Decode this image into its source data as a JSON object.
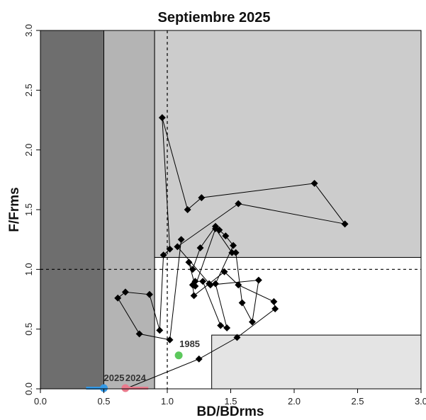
{
  "chart_data": {
    "type": "scatter",
    "title": "Septiembre 2025",
    "xlabel": "BD/BDrms",
    "ylabel": "F/Frms",
    "xlim": [
      0,
      3
    ],
    "ylim": [
      0,
      3
    ],
    "xticks": [
      "0.0",
      "0.5",
      "1.0",
      "1.5",
      "2.0",
      "2.5",
      "3.0"
    ],
    "yticks": [
      "0.0",
      "0.5",
      "1.0",
      "1.5",
      "2.0",
      "2.5",
      "3.0"
    ],
    "grid": false,
    "reference_lines": {
      "x": 1.0,
      "y": 1.0
    },
    "zones": [
      {
        "x0": 0,
        "x1": 0.5,
        "y0": 0,
        "y1": 3,
        "color": "#6e6e6e"
      },
      {
        "x0": 0.5,
        "x1": 0.9,
        "y0": 0,
        "y1": 3,
        "color": "#b4b4b4"
      },
      {
        "x0": 0.9,
        "x1": 3,
        "y0": 1.1,
        "y1": 3,
        "color": "#cccccc"
      },
      {
        "x0": 0.9,
        "x1": 3,
        "y0": 0,
        "y1": 1.1,
        "color": "#ffffff"
      },
      {
        "x0": 1.35,
        "x1": 3,
        "y0": 0,
        "y1": 0.45,
        "color": "#e4e4e4"
      }
    ],
    "series": [
      {
        "points": [
          [
            0.67,
            0.0
          ],
          [
            1.25,
            0.25
          ],
          [
            1.55,
            0.43
          ],
          [
            1.85,
            0.67
          ],
          [
            1.84,
            0.73
          ],
          [
            1.56,
            0.87
          ],
          [
            1.45,
            0.98
          ],
          [
            1.33,
            0.88
          ],
          [
            1.21,
            0.78
          ],
          [
            1.2,
            0.87
          ],
          [
            1.22,
            0.9
          ],
          [
            1.28,
            0.9
          ],
          [
            1.42,
            0.53
          ],
          [
            1.47,
            0.51
          ],
          [
            1.38,
            0.88
          ],
          [
            1.52,
            1.2
          ],
          [
            1.46,
            1.28
          ],
          [
            1.41,
            1.33
          ],
          [
            1.38,
            1.36
          ],
          [
            1.26,
            1.18
          ],
          [
            1.2,
            1.0
          ],
          [
            1.17,
            1.06
          ],
          [
            1.22,
            0.86
          ],
          [
            1.38,
            1.34
          ],
          [
            1.51,
            1.14
          ],
          [
            1.54,
            1.14
          ],
          [
            1.59,
            0.72
          ],
          [
            1.67,
            0.56
          ],
          [
            1.72,
            0.91
          ],
          [
            1.34,
            0.87
          ],
          [
            1.08,
            1.19
          ],
          [
            1.56,
            1.55
          ],
          [
            2.4,
            1.38
          ],
          [
            2.16,
            1.72
          ],
          [
            1.27,
            1.6
          ],
          [
            1.16,
            1.5
          ],
          [
            0.96,
            2.27
          ],
          [
            1.02,
            1.17
          ],
          [
            0.97,
            1.12
          ],
          [
            0.94,
            0.49
          ],
          [
            0.86,
            0.79
          ],
          [
            0.67,
            0.81
          ],
          [
            0.61,
            0.76
          ],
          [
            0.78,
            0.46
          ],
          [
            1.02,
            0.41
          ],
          [
            1.11,
            1.25
          ]
        ]
      }
    ],
    "annotations": [
      {
        "label": "1985",
        "x": 1.09,
        "y": 0.28,
        "color": "#5cc85c"
      },
      {
        "label": "2025",
        "x": 0.5,
        "y": 0.0,
        "color": "#3399e6"
      },
      {
        "label": "2024",
        "x": 0.67,
        "y": 0.0,
        "color": "#e97a8c"
      }
    ],
    "recent_trails": [
      {
        "color": "#3399e6",
        "x": [
          0.36,
          0.5
        ]
      },
      {
        "color": "#e97a8c",
        "x": [
          0.64,
          0.85
        ]
      }
    ]
  }
}
